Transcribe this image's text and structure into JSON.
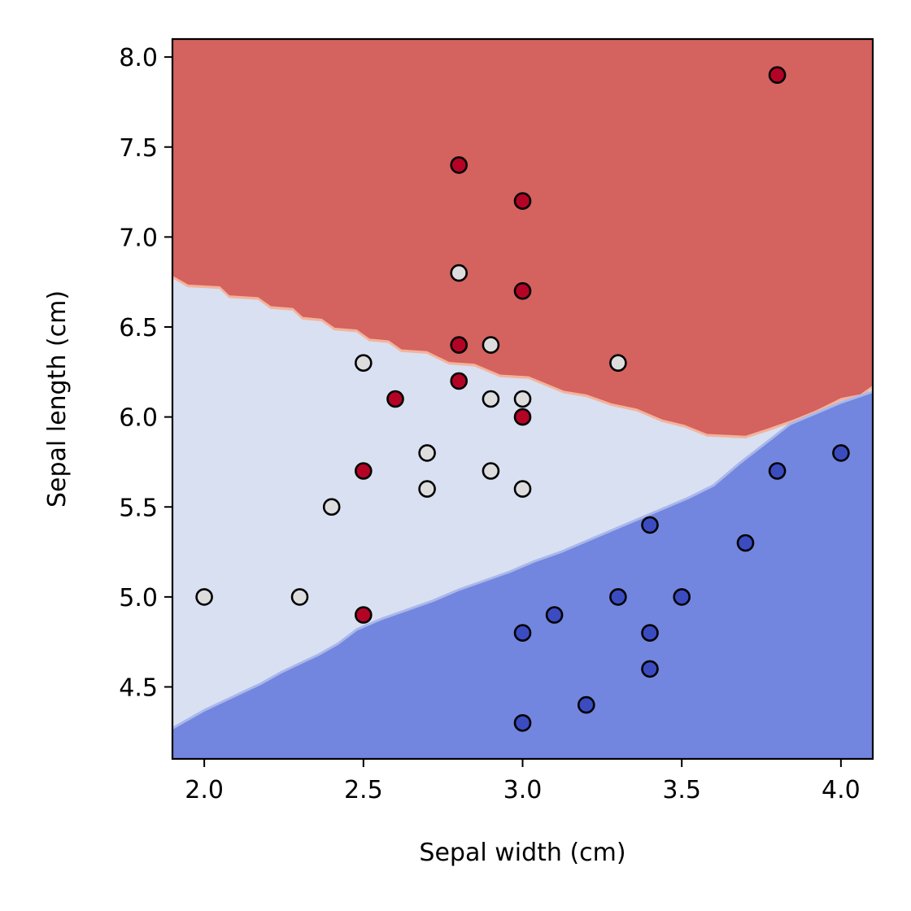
{
  "chart_data": {
    "type": "scatter",
    "title": "",
    "xlabel": "Sepal width (cm)",
    "ylabel": "Sepal length (cm)",
    "xlim": [
      1.9,
      4.1
    ],
    "ylim": [
      4.1,
      8.1
    ],
    "xticks": [
      "2.0",
      "2.5",
      "3.0",
      "3.5",
      "4.0"
    ],
    "yticks": [
      "4.5",
      "5.0",
      "5.5",
      "6.0",
      "6.5",
      "7.0",
      "7.5",
      "8.0"
    ],
    "grid": false,
    "legend": "none",
    "decision_regions": {
      "colors": {
        "red": "#d4625f",
        "light": "#d8e0f2",
        "blue": "#7286df",
        "edge": "#f4b39a"
      },
      "red_lower_boundary": [
        [
          1.9,
          6.78
        ],
        [
          1.95,
          6.73
        ],
        [
          2.05,
          6.72
        ],
        [
          2.08,
          6.67
        ],
        [
          2.17,
          6.66
        ],
        [
          2.21,
          6.61
        ],
        [
          2.28,
          6.6
        ],
        [
          2.31,
          6.55
        ],
        [
          2.37,
          6.54
        ],
        [
          2.41,
          6.49
        ],
        [
          2.48,
          6.48
        ],
        [
          2.52,
          6.43
        ],
        [
          2.58,
          6.42
        ],
        [
          2.62,
          6.37
        ],
        [
          2.7,
          6.36
        ],
        [
          2.77,
          6.3
        ],
        [
          2.85,
          6.29
        ],
        [
          2.93,
          6.23
        ],
        [
          3.02,
          6.22
        ],
        [
          3.13,
          6.14
        ],
        [
          3.2,
          6.12
        ],
        [
          3.28,
          6.07
        ],
        [
          3.36,
          6.04
        ],
        [
          3.44,
          5.98
        ],
        [
          3.51,
          5.95
        ],
        [
          3.58,
          5.9
        ],
        [
          3.7,
          5.89
        ],
        [
          3.77,
          5.93
        ],
        [
          3.85,
          5.98
        ],
        [
          3.92,
          6.03
        ],
        [
          4.0,
          6.1
        ],
        [
          4.06,
          6.12
        ],
        [
          4.1,
          6.17
        ]
      ],
      "blue_upper_boundary": [
        [
          1.9,
          4.27
        ],
        [
          1.95,
          4.32
        ],
        [
          2.0,
          4.37
        ],
        [
          2.06,
          4.42
        ],
        [
          2.12,
          4.47
        ],
        [
          2.18,
          4.52
        ],
        [
          2.24,
          4.58
        ],
        [
          2.3,
          4.63
        ],
        [
          2.36,
          4.68
        ],
        [
          2.42,
          4.74
        ],
        [
          2.48,
          4.82
        ],
        [
          2.56,
          4.88
        ],
        [
          2.64,
          4.93
        ],
        [
          2.72,
          4.98
        ],
        [
          2.8,
          5.04
        ],
        [
          2.88,
          5.09
        ],
        [
          2.96,
          5.14
        ],
        [
          3.04,
          5.2
        ],
        [
          3.12,
          5.25
        ],
        [
          3.2,
          5.31
        ],
        [
          3.28,
          5.37
        ],
        [
          3.36,
          5.43
        ],
        [
          3.44,
          5.49
        ],
        [
          3.52,
          5.55
        ],
        [
          3.6,
          5.62
        ],
        [
          3.68,
          5.74
        ],
        [
          3.76,
          5.85
        ],
        [
          3.84,
          5.96
        ],
        [
          3.92,
          6.02
        ],
        [
          4.0,
          6.08
        ],
        [
          4.1,
          6.14
        ]
      ]
    },
    "series": [
      {
        "color": "#b40426",
        "points": [
          [
            3.8,
            7.9
          ],
          [
            2.8,
            7.4
          ],
          [
            3.0,
            7.2
          ],
          [
            3.0,
            6.7
          ],
          [
            2.8,
            6.4
          ],
          [
            2.8,
            6.2
          ],
          [
            2.6,
            6.1
          ],
          [
            3.0,
            6.0
          ],
          [
            2.5,
            5.7
          ],
          [
            2.5,
            4.9
          ]
        ]
      },
      {
        "color": "#dddddd",
        "points": [
          [
            2.8,
            6.8
          ],
          [
            2.9,
            6.4
          ],
          [
            2.5,
            6.3
          ],
          [
            3.3,
            6.3
          ],
          [
            2.9,
            6.1
          ],
          [
            3.0,
            6.1
          ],
          [
            2.7,
            5.8
          ],
          [
            2.9,
            5.7
          ],
          [
            2.7,
            5.6
          ],
          [
            3.0,
            5.6
          ],
          [
            2.4,
            5.5
          ],
          [
            2.0,
            5.0
          ],
          [
            2.3,
            5.0
          ]
        ]
      },
      {
        "color": "#3b4cc0",
        "points": [
          [
            4.0,
            5.8
          ],
          [
            3.8,
            5.7
          ],
          [
            3.4,
            5.4
          ],
          [
            3.7,
            5.3
          ],
          [
            3.3,
            5.0
          ],
          [
            3.5,
            5.0
          ],
          [
            3.1,
            4.9
          ],
          [
            3.0,
            4.8
          ],
          [
            3.4,
            4.8
          ],
          [
            3.4,
            4.6
          ],
          [
            3.2,
            4.4
          ],
          [
            3.0,
            4.3
          ]
        ]
      }
    ]
  }
}
